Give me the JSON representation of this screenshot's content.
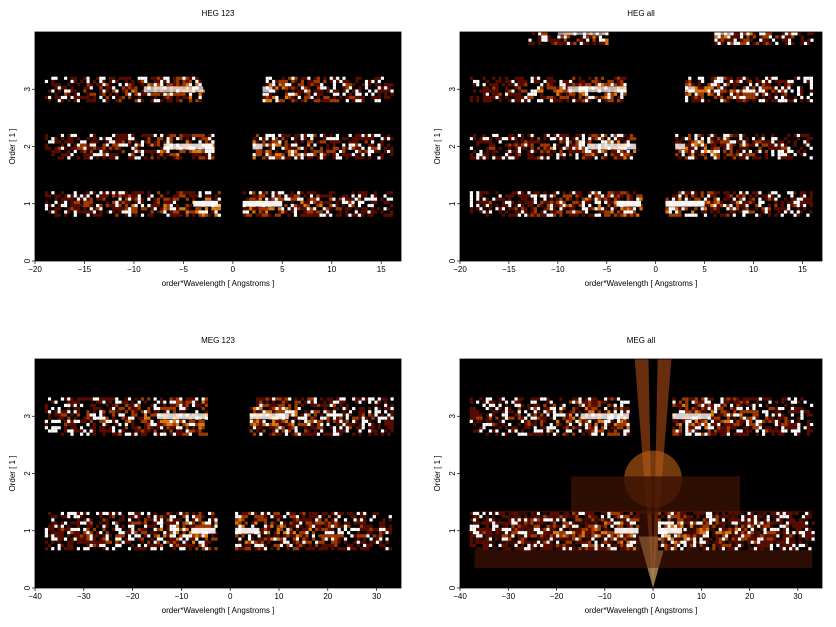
{
  "panels": [
    {
      "title": "HEG 123",
      "xlabel": "order*Wavelength [ Angstroms ]",
      "ylabel": "Order [ 1 ]",
      "xticks": [
        "−20",
        "−15",
        "−10",
        "−5",
        "0",
        "5",
        "10",
        "15"
      ],
      "yticks": [
        "0",
        "1",
        "2",
        "3"
      ]
    },
    {
      "title": "HEG all",
      "xlabel": "order*Wavelength [ Angstroms ]",
      "ylabel": "Order [ 1 ]",
      "xticks": [
        "−20",
        "−15",
        "−10",
        "−5",
        "0",
        "5",
        "10",
        "15"
      ],
      "yticks": [
        "0",
        "1",
        "2",
        "3"
      ]
    },
    {
      "title": "MEG 123",
      "xlabel": "order*Wavelength [ Angstroms ]",
      "ylabel": "Order [ 1 ]",
      "xticks": [
        "−40",
        "−30",
        "−20",
        "−10",
        "0",
        "10",
        "20",
        "30"
      ],
      "yticks": [
        "0",
        "1",
        "2",
        "3"
      ]
    },
    {
      "title": "MEG all",
      "xlabel": "order*Wavelength [ Angstroms ]",
      "ylabel": "Order [ 1 ]",
      "xticks": [
        "−40",
        "−30",
        "−20",
        "−10",
        "0",
        "10",
        "20",
        "30"
      ],
      "yticks": [
        "0",
        "1",
        "2",
        "3"
      ]
    }
  ],
  "chart_data": [
    {
      "type": "heatmap",
      "title": "HEG 123",
      "xlabel": "order*Wavelength [ Angstroms ]",
      "ylabel": "Order [ 1 ]",
      "xlim": [
        -20,
        17
      ],
      "ylim": [
        0,
        4
      ],
      "xticks": [
        -20,
        -15,
        -10,
        -5,
        0,
        5,
        10,
        15
      ],
      "yticks": [
        0,
        1,
        2,
        3
      ],
      "colormap": [
        "#000000",
        "#5a0c00",
        "#a33a00",
        "#e07a10",
        "#ffc060",
        "#ffffff"
      ],
      "bands": [
        {
          "order": 1,
          "x_segments": [
            [
              -19,
              -1.5
            ],
            [
              1,
              16
            ]
          ],
          "peak_x": [
            -4,
            5
          ],
          "level": 0.95
        },
        {
          "order": 2,
          "x_segments": [
            [
              -19,
              -2
            ],
            [
              2,
              16
            ]
          ],
          "peak_x": [
            -7,
            3
          ],
          "level": 0.8
        },
        {
          "order": 3,
          "x_segments": [
            [
              -19,
              -3
            ],
            [
              3,
              16
            ]
          ],
          "peak_x": [
            -9,
            4
          ],
          "level": 0.7
        }
      ]
    },
    {
      "type": "heatmap",
      "title": "HEG all",
      "xlabel": "order*Wavelength [ Angstroms ]",
      "ylabel": "Order [ 1 ]",
      "xlim": [
        -20,
        17
      ],
      "ylim": [
        0,
        4
      ],
      "xticks": [
        -20,
        -15,
        -10,
        -5,
        0,
        5,
        10,
        15
      ],
      "yticks": [
        0,
        1,
        2,
        3
      ],
      "colormap": [
        "#000000",
        "#5a0c00",
        "#a33a00",
        "#e07a10",
        "#ffc060",
        "#ffffff"
      ],
      "bands": [
        {
          "order": 1,
          "x_segments": [
            [
              -19,
              -1.5
            ],
            [
              1,
              16
            ]
          ],
          "peak_x": [
            -4,
            5
          ],
          "level": 0.95
        },
        {
          "order": 2,
          "x_segments": [
            [
              -19,
              -2
            ],
            [
              2,
              16
            ]
          ],
          "peak_x": [
            -7,
            3
          ],
          "level": 0.8
        },
        {
          "order": 3,
          "x_segments": [
            [
              -19,
              -3
            ],
            [
              3,
              16
            ]
          ],
          "peak_x": [
            -9,
            4
          ],
          "level": 0.7
        },
        {
          "order": 4,
          "x_segments": [
            [
              -13,
              -5
            ],
            [
              6,
              16
            ]
          ],
          "peak_x": [
            -10,
            8
          ],
          "level": 0.6
        }
      ]
    },
    {
      "type": "heatmap",
      "title": "MEG 123",
      "xlabel": "order*Wavelength [ Angstroms ]",
      "ylabel": "Order [ 1 ]",
      "xlim": [
        -40,
        35
      ],
      "ylim": [
        0,
        4
      ],
      "xticks": [
        -40,
        -30,
        -20,
        -10,
        0,
        10,
        20,
        30
      ],
      "yticks": [
        0,
        1,
        2,
        3
      ],
      "colormap": [
        "#000000",
        "#5a0c00",
        "#a33a00",
        "#e07a10",
        "#ffc060",
        "#ffffff"
      ],
      "bands": [
        {
          "order": 1,
          "x_segments": [
            [
              -38,
              -3
            ],
            [
              1,
              33
            ]
          ],
          "peak_x": [
            -8,
            6
          ],
          "level": 0.9
        },
        {
          "order": 3,
          "x_segments": [
            [
              -38,
              -5
            ],
            [
              4,
              33
            ]
          ],
          "peak_x": [
            -15,
            12
          ],
          "level": 0.8
        }
      ]
    },
    {
      "type": "heatmap",
      "title": "MEG all",
      "xlabel": "order*Wavelength [ Angstroms ]",
      "ylabel": "Order [ 1 ]",
      "xlim": [
        -40,
        35
      ],
      "ylim": [
        0,
        4
      ],
      "xticks": [
        -40,
        -30,
        -20,
        -10,
        0,
        10,
        20,
        30
      ],
      "yticks": [
        0,
        1,
        2,
        3
      ],
      "colormap": [
        "#000000",
        "#5a0c00",
        "#a33a00",
        "#e07a10",
        "#ffc060",
        "#ffffff"
      ],
      "bands": [
        {
          "order": 1,
          "x_segments": [
            [
              -38,
              -3
            ],
            [
              1,
              33
            ]
          ],
          "peak_x": [
            -8,
            6
          ],
          "level": 0.9
        },
        {
          "order": 3,
          "x_segments": [
            [
              -38,
              -5
            ],
            [
              4,
              33
            ]
          ],
          "peak_x": [
            -15,
            12
          ],
          "level": 0.8
        }
      ],
      "features": [
        "wedge-shaped diagonal streaks converging at order 0 near x = 0"
      ]
    }
  ]
}
